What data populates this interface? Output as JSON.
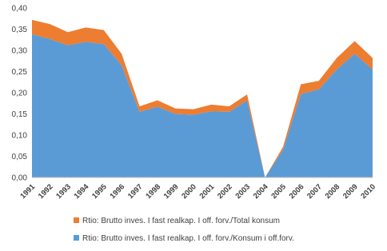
{
  "chart_data": {
    "type": "stacked-area",
    "categories": [
      "1991",
      "1992",
      "1993",
      "1994",
      "1995",
      "1996",
      "1997",
      "1998",
      "1999",
      "2000",
      "2001",
      "2002",
      "2003",
      "2004",
      "2005",
      "2006",
      "2007",
      "2008",
      "2009",
      "2010"
    ],
    "series": [
      {
        "name": "Rtio: Brutto inves. I fast realkap. I off. forv./Konsum i off.forv.",
        "color": "#5b9bd5",
        "values": [
          0.338,
          0.327,
          0.312,
          0.32,
          0.315,
          0.265,
          0.155,
          0.167,
          0.15,
          0.148,
          0.156,
          0.155,
          0.182,
          0.0,
          0.065,
          0.197,
          0.208,
          0.255,
          0.292,
          0.255
        ]
      },
      {
        "name": "Rtio: Brutto inves. I fast realkap. I off. forv./Total konsum",
        "color": "#ed7d31",
        "values": [
          0.034,
          0.035,
          0.031,
          0.034,
          0.033,
          0.027,
          0.013,
          0.015,
          0.013,
          0.013,
          0.016,
          0.013,
          0.014,
          0.0,
          0.007,
          0.023,
          0.02,
          0.027,
          0.03,
          0.027
        ]
      }
    ],
    "ylim": [
      0,
      0.4
    ],
    "yticks": [
      {
        "value": 0,
        "label": "0,00"
      },
      {
        "value": 0.05,
        "label": "0,05"
      },
      {
        "value": 0.1,
        "label": "0,10"
      },
      {
        "value": 0.15,
        "label": "0,15"
      },
      {
        "value": 0.2,
        "label": "0,20"
      },
      {
        "value": 0.25,
        "label": "0,25"
      },
      {
        "value": 0.3,
        "label": "0,30"
      },
      {
        "value": 0.35,
        "label": "0,35"
      },
      {
        "value": 0.4,
        "label": "0,40"
      }
    ]
  }
}
